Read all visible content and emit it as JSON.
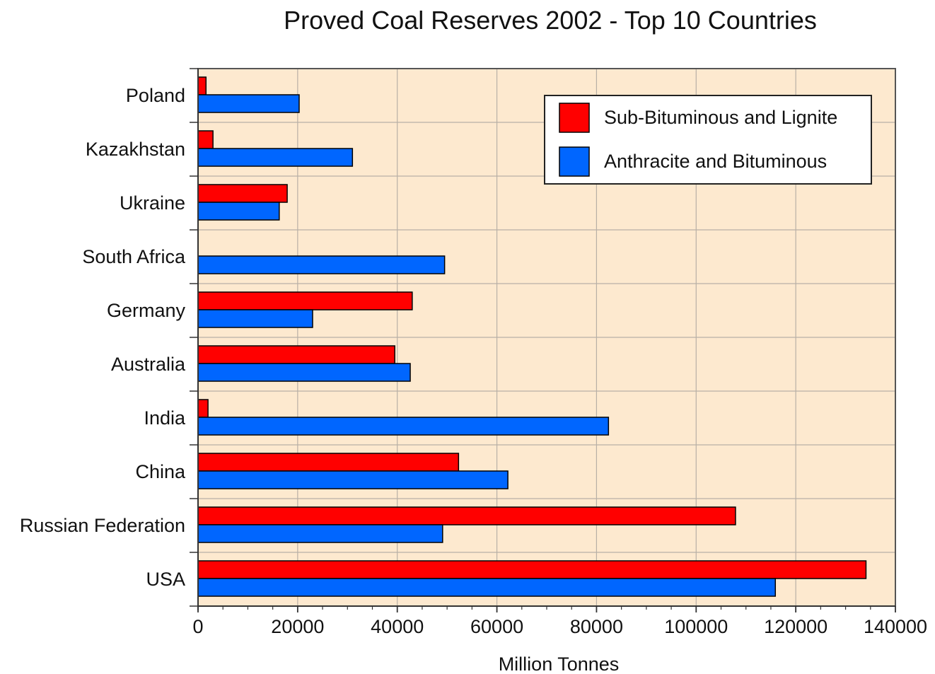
{
  "chart_data": {
    "type": "bar",
    "orientation": "horizontal",
    "title": "Proved Coal Reserves 2002 - Top 10 Countries",
    "xlabel": "Million Tonnes",
    "ylabel": "",
    "xlim": [
      0,
      140000
    ],
    "xticks": [
      "0",
      "20000",
      "40000",
      "60000",
      "80000",
      "100000",
      "120000",
      "140000"
    ],
    "categories": [
      "Poland",
      "Kazakhstan",
      "Ukraine",
      "South Africa",
      "Germany",
      "Australia",
      "India",
      "China",
      "Russian Federation",
      "USA"
    ],
    "series": [
      {
        "name": "Sub-Bituminous and Lignite",
        "color": "#ff0000",
        "values": [
          1600,
          3000,
          17900,
          0,
          43000,
          39500,
          2000,
          52300,
          107900,
          134100
        ]
      },
      {
        "name": "Anthracite and Bituminous",
        "color": "#0066ff",
        "values": [
          20300,
          31000,
          16300,
          49500,
          23000,
          42600,
          82400,
          62200,
          49100,
          115900
        ]
      }
    ],
    "grid": true,
    "legend_position": "top-right",
    "plot_background": "#fde9cf"
  }
}
